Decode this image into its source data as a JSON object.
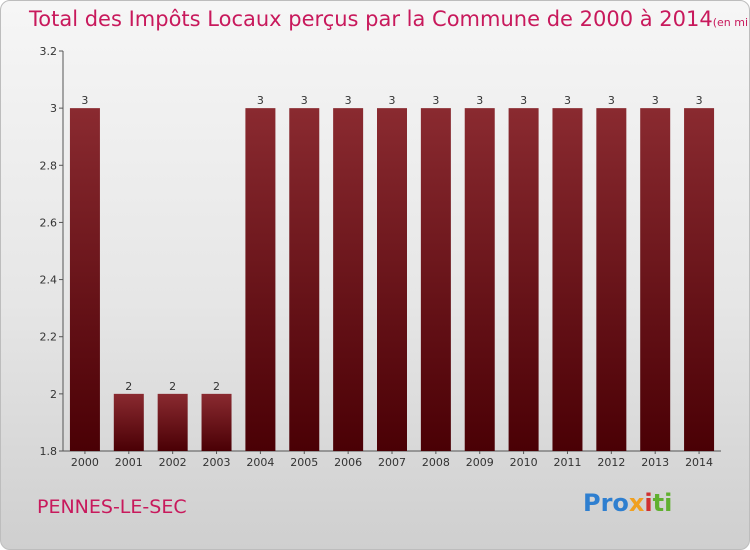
{
  "title": "Total des Impôts Locaux perçus par la Commune de 2000 à 2014",
  "unit": "(en milliers d'€)",
  "commune": "PENNES-LE-SEC",
  "logo": {
    "p1": "Pro",
    "p2": "x",
    "p3": "i",
    "p4": "ti"
  },
  "colors": {
    "accent": "#c8195c",
    "bar_top": "#8a2a30",
    "bar_bottom": "#4a0005"
  },
  "chart_data": {
    "type": "bar",
    "title": "Total des Impôts Locaux perçus par la Commune de 2000 à 2014",
    "categories": [
      "2000",
      "2001",
      "2002",
      "2003",
      "2004",
      "2005",
      "2006",
      "2007",
      "2008",
      "2009",
      "2010",
      "2011",
      "2012",
      "2013",
      "2014"
    ],
    "values": [
      3,
      2,
      2,
      2,
      3,
      3,
      3,
      3,
      3,
      3,
      3,
      3,
      3,
      3,
      3
    ],
    "labels": [
      "3",
      "2",
      "2",
      "2",
      "3",
      "3",
      "3",
      "3",
      "3",
      "3",
      "3",
      "3",
      "3",
      "3",
      "3"
    ],
    "yticks": [
      "1.8",
      "2",
      "2.2",
      "2.4",
      "2.6",
      "2.8",
      "3",
      "3.2"
    ],
    "ylim": [
      1.8,
      3.2
    ],
    "grid": false
  }
}
